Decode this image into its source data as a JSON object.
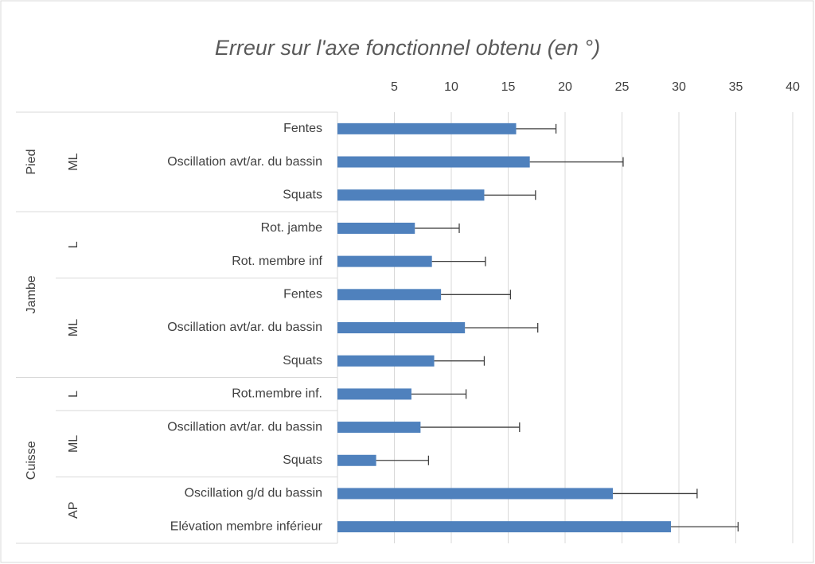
{
  "chart_data": {
    "type": "bar",
    "title": "Erreur sur l'axe fonctionnel obtenu (en °)",
    "color": "#4f81bd",
    "error_color": "#404040",
    "grid": true,
    "xlim": [
      0,
      40
    ],
    "xticks": [
      5,
      10,
      15,
      20,
      25,
      30,
      35,
      40
    ],
    "groups": [
      {
        "label": "Pied",
        "subgroups": [
          {
            "label": "ML",
            "categories": [
              "Fentes",
              "Oscillation avt/ar. du bassin",
              "Squats"
            ],
            "values": [
              15.7,
              16.9,
              12.9
            ],
            "errors": [
              3.5,
              8.2,
              4.5
            ]
          }
        ]
      },
      {
        "label": "Jambe",
        "subgroups": [
          {
            "label": "L",
            "categories": [
              "Rot. jambe",
              "Rot. membre inf"
            ],
            "values": [
              6.8,
              8.3
            ],
            "errors": [
              3.9,
              4.7
            ]
          },
          {
            "label": "ML",
            "categories": [
              "Fentes",
              "Oscillation avt/ar. du bassin",
              "Squats"
            ],
            "values": [
              9.1,
              11.2,
              8.5
            ],
            "errors": [
              6.1,
              6.4,
              4.4
            ]
          }
        ]
      },
      {
        "label": "Cuisse",
        "subgroups": [
          {
            "label": "L",
            "categories": [
              "Rot.membre inf."
            ],
            "values": [
              6.5
            ],
            "errors": [
              4.8
            ]
          },
          {
            "label": "ML",
            "categories": [
              "Oscillation avt/ar. du bassin",
              "Squats"
            ],
            "values": [
              7.3,
              3.4
            ],
            "errors": [
              8.7,
              4.6
            ]
          },
          {
            "label": "AP",
            "categories": [
              "Oscillation g/d du bassin",
              "Elévation membre inférieur"
            ],
            "values": [
              24.2,
              29.3
            ],
            "errors": [
              7.4,
              5.9
            ]
          }
        ]
      }
    ]
  }
}
